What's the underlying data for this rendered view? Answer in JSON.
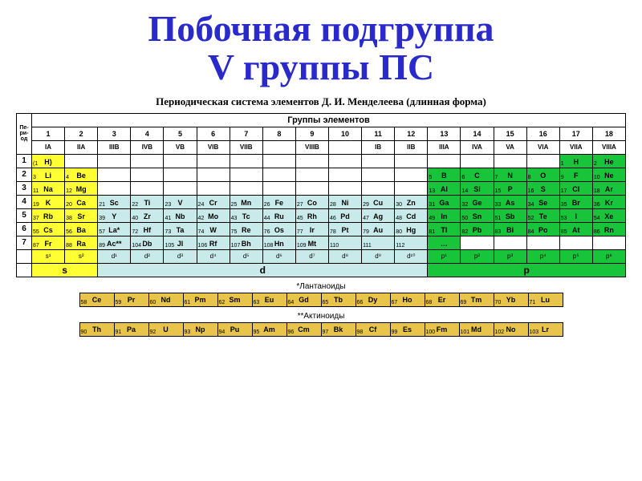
{
  "title_line1": "Побочная подгруппа",
  "title_line2": "V группы ПС",
  "title_color": "#2a2acc",
  "title_fontsize": 46,
  "subtitle": "Периодическая система элементов Д. И. Менделеева (длинная форма)",
  "subtitle_fontsize": 13,
  "group_header": "Группы элементов",
  "group_header_fontsize": 11,
  "colors": {
    "s_block": "#ffff33",
    "d_block": "#c9eaea",
    "p_block": "#17c43a",
    "f_block": "#e8c44a",
    "empty": "#ffffff",
    "border": "#000000"
  },
  "columns_num": [
    "1",
    "2",
    "3",
    "4",
    "5",
    "6",
    "7",
    "8",
    "9",
    "10",
    "11",
    "12",
    "13",
    "14",
    "15",
    "16",
    "17",
    "18"
  ],
  "columns_roman": [
    "IA",
    "IIA",
    "IIIB",
    "IVB",
    "VB",
    "VIB",
    "VIIB",
    "",
    "VIIIB",
    "",
    "IB",
    "IIB",
    "IIIA",
    "IVA",
    "VA",
    "VIA",
    "VIIA",
    "VIIIA"
  ],
  "periods": [
    {
      "n": "1",
      "cells": [
        {
          "num": "(1",
          "sym": "H)",
          "blk": "s"
        },
        null,
        null,
        null,
        null,
        null,
        null,
        null,
        null,
        null,
        null,
        null,
        null,
        null,
        null,
        null,
        {
          "num": "1",
          "sym": "H",
          "blk": "p"
        },
        {
          "num": "2",
          "sym": "He",
          "blk": "p"
        }
      ]
    },
    {
      "n": "2",
      "cells": [
        {
          "num": "3",
          "sym": "Li",
          "blk": "s"
        },
        {
          "num": "4",
          "sym": "Be",
          "blk": "s"
        },
        null,
        null,
        null,
        null,
        null,
        null,
        null,
        null,
        null,
        null,
        {
          "num": "5",
          "sym": "B",
          "blk": "p"
        },
        {
          "num": "6",
          "sym": "C",
          "blk": "p"
        },
        {
          "num": "7",
          "sym": "N",
          "blk": "p"
        },
        {
          "num": "8",
          "sym": "O",
          "blk": "p"
        },
        {
          "num": "9",
          "sym": "F",
          "blk": "p"
        },
        {
          "num": "10",
          "sym": "Ne",
          "blk": "p"
        }
      ]
    },
    {
      "n": "3",
      "cells": [
        {
          "num": "11",
          "sym": "Na",
          "blk": "s"
        },
        {
          "num": "12",
          "sym": "Mg",
          "blk": "s"
        },
        null,
        null,
        null,
        null,
        null,
        null,
        null,
        null,
        null,
        null,
        {
          "num": "13",
          "sym": "Al",
          "blk": "p"
        },
        {
          "num": "14",
          "sym": "Si",
          "blk": "p"
        },
        {
          "num": "15",
          "sym": "P",
          "blk": "p"
        },
        {
          "num": "16",
          "sym": "S",
          "blk": "p"
        },
        {
          "num": "17",
          "sym": "Cl",
          "blk": "p"
        },
        {
          "num": "18",
          "sym": "Ar",
          "blk": "p"
        }
      ]
    },
    {
      "n": "4",
      "cells": [
        {
          "num": "19",
          "sym": "K",
          "blk": "s"
        },
        {
          "num": "20",
          "sym": "Ca",
          "blk": "s"
        },
        {
          "num": "21",
          "sym": "Sc",
          "blk": "d"
        },
        {
          "num": "22",
          "sym": "Ti",
          "blk": "d"
        },
        {
          "num": "23",
          "sym": "V",
          "blk": "d"
        },
        {
          "num": "24",
          "sym": "Cr",
          "blk": "d"
        },
        {
          "num": "25",
          "sym": "Mn",
          "blk": "d"
        },
        {
          "num": "26",
          "sym": "Fe",
          "blk": "d"
        },
        {
          "num": "27",
          "sym": "Co",
          "blk": "d"
        },
        {
          "num": "28",
          "sym": "Ni",
          "blk": "d"
        },
        {
          "num": "29",
          "sym": "Cu",
          "blk": "d"
        },
        {
          "num": "30",
          "sym": "Zn",
          "blk": "d"
        },
        {
          "num": "31",
          "sym": "Ga",
          "blk": "p"
        },
        {
          "num": "32",
          "sym": "Ge",
          "blk": "p"
        },
        {
          "num": "33",
          "sym": "As",
          "blk": "p"
        },
        {
          "num": "34",
          "sym": "Se",
          "blk": "p"
        },
        {
          "num": "35",
          "sym": "Br",
          "blk": "p"
        },
        {
          "num": "36",
          "sym": "Kr",
          "blk": "p"
        }
      ]
    },
    {
      "n": "5",
      "cells": [
        {
          "num": "37",
          "sym": "Rb",
          "blk": "s"
        },
        {
          "num": "38",
          "sym": "Sr",
          "blk": "s"
        },
        {
          "num": "39",
          "sym": "Y",
          "blk": "d"
        },
        {
          "num": "40",
          "sym": "Zr",
          "blk": "d"
        },
        {
          "num": "41",
          "sym": "Nb",
          "blk": "d"
        },
        {
          "num": "42",
          "sym": "Mo",
          "blk": "d"
        },
        {
          "num": "43",
          "sym": "Tc",
          "blk": "d"
        },
        {
          "num": "44",
          "sym": "Ru",
          "blk": "d"
        },
        {
          "num": "45",
          "sym": "Rh",
          "blk": "d"
        },
        {
          "num": "46",
          "sym": "Pd",
          "blk": "d"
        },
        {
          "num": "47",
          "sym": "Ag",
          "blk": "d"
        },
        {
          "num": "48",
          "sym": "Cd",
          "blk": "d"
        },
        {
          "num": "49",
          "sym": "In",
          "blk": "p"
        },
        {
          "num": "50",
          "sym": "Sn",
          "blk": "p"
        },
        {
          "num": "51",
          "sym": "Sb",
          "blk": "p"
        },
        {
          "num": "52",
          "sym": "Te",
          "blk": "p"
        },
        {
          "num": "53",
          "sym": "I",
          "blk": "p"
        },
        {
          "num": "54",
          "sym": "Xe",
          "blk": "p"
        }
      ]
    },
    {
      "n": "6",
      "cells": [
        {
          "num": "55",
          "sym": "Cs",
          "blk": "s"
        },
        {
          "num": "56",
          "sym": "Ba",
          "blk": "s"
        },
        {
          "num": "57",
          "sym": "La*",
          "blk": "d"
        },
        {
          "num": "72",
          "sym": "Hf",
          "blk": "d"
        },
        {
          "num": "73",
          "sym": "Ta",
          "blk": "d"
        },
        {
          "num": "74",
          "sym": "W",
          "blk": "d"
        },
        {
          "num": "75",
          "sym": "Re",
          "blk": "d"
        },
        {
          "num": "76",
          "sym": "Os",
          "blk": "d"
        },
        {
          "num": "77",
          "sym": "Ir",
          "blk": "d"
        },
        {
          "num": "78",
          "sym": "Pt",
          "blk": "d"
        },
        {
          "num": "79",
          "sym": "Au",
          "blk": "d"
        },
        {
          "num": "80",
          "sym": "Hg",
          "blk": "d"
        },
        {
          "num": "81",
          "sym": "Tl",
          "blk": "p"
        },
        {
          "num": "82",
          "sym": "Pb",
          "blk": "p"
        },
        {
          "num": "83",
          "sym": "Bi",
          "blk": "p"
        },
        {
          "num": "84",
          "sym": "Po",
          "blk": "p"
        },
        {
          "num": "85",
          "sym": "At",
          "blk": "p"
        },
        {
          "num": "86",
          "sym": "Rn",
          "blk": "p"
        }
      ]
    },
    {
      "n": "7",
      "cells": [
        {
          "num": "87",
          "sym": "Fr",
          "blk": "s"
        },
        {
          "num": "88",
          "sym": "Ra",
          "blk": "s"
        },
        {
          "num": "89",
          "sym": "Ac**",
          "blk": "d"
        },
        {
          "num": "104",
          "sym": "Db",
          "blk": "d"
        },
        {
          "num": "105",
          "sym": "Jl",
          "blk": "d"
        },
        {
          "num": "106",
          "sym": "Rf",
          "blk": "d"
        },
        {
          "num": "107",
          "sym": "Bh",
          "blk": "d"
        },
        {
          "num": "108",
          "sym": "Hn",
          "blk": "d"
        },
        {
          "num": "109",
          "sym": "Mt",
          "blk": "d"
        },
        {
          "num": "110",
          "sym": "",
          "blk": "d"
        },
        {
          "num": "111",
          "sym": "",
          "blk": "d"
        },
        {
          "num": "112",
          "sym": "",
          "blk": "d"
        },
        {
          "num": "",
          "sym": "…",
          "blk": "p"
        },
        null,
        null,
        null,
        null,
        null
      ]
    }
  ],
  "econf_row": [
    "s¹",
    "s²",
    "d¹",
    "d²",
    "d³",
    "d⁴",
    "d⁵",
    "d⁶",
    "d⁷",
    "d⁸",
    "d⁹",
    "d¹⁰",
    "p¹",
    "p²",
    "p³",
    "p⁴",
    "p⁵",
    "p⁶"
  ],
  "block_labels": {
    "s": "s",
    "d": "d",
    "p": "p"
  },
  "block_spans": {
    "s": 2,
    "d": 10,
    "p": 6
  },
  "lanthanoids_label": "*Лантаноиды",
  "lanthanoids": [
    {
      "num": "58",
      "sym": "Ce"
    },
    {
      "num": "59",
      "sym": "Pr"
    },
    {
      "num": "60",
      "sym": "Nd"
    },
    {
      "num": "61",
      "sym": "Pm"
    },
    {
      "num": "62",
      "sym": "Sm"
    },
    {
      "num": "63",
      "sym": "Eu"
    },
    {
      "num": "64",
      "sym": "Gd"
    },
    {
      "num": "65",
      "sym": "Tb"
    },
    {
      "num": "66",
      "sym": "Dy"
    },
    {
      "num": "67",
      "sym": "Ho"
    },
    {
      "num": "68",
      "sym": "Er"
    },
    {
      "num": "69",
      "sym": "Tm"
    },
    {
      "num": "70",
      "sym": "Yb"
    },
    {
      "num": "71",
      "sym": "Lu"
    }
  ],
  "actinoids_label": "**Актиноиды",
  "actinoids": [
    {
      "num": "90",
      "sym": "Th"
    },
    {
      "num": "91",
      "sym": "Pa"
    },
    {
      "num": "92",
      "sym": "U"
    },
    {
      "num": "93",
      "sym": "Np"
    },
    {
      "num": "94",
      "sym": "Pu"
    },
    {
      "num": "95",
      "sym": "Am"
    },
    {
      "num": "96",
      "sym": "Cm"
    },
    {
      "num": "97",
      "sym": "Bk"
    },
    {
      "num": "98",
      "sym": "Cf"
    },
    {
      "num": "99",
      "sym": "Es"
    },
    {
      "num": "100",
      "sym": "Fm"
    },
    {
      "num": "101",
      "sym": "Md"
    },
    {
      "num": "102",
      "sym": "No"
    },
    {
      "num": "103",
      "sym": "Lr"
    }
  ]
}
